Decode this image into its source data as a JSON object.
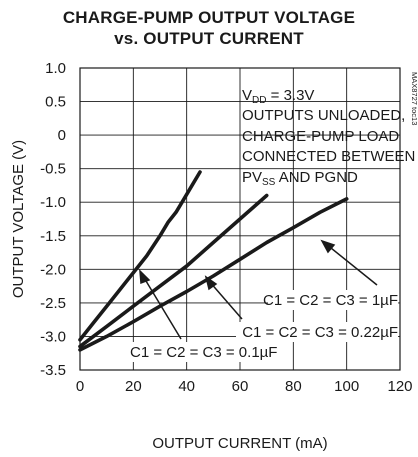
{
  "title_lines": [
    "CHARGE-PUMP OUTPUT VOLTAGE",
    "vs. OUTPUT CURRENT"
  ],
  "chart_data": {
    "type": "line",
    "xlabel": "OUTPUT CURRENT (mA)",
    "ylabel": "OUTPUT VOLTAGE (V)",
    "xlim": [
      0,
      120
    ],
    "ylim": [
      -3.5,
      1.0
    ],
    "xticks": [
      "0",
      "20",
      "40",
      "60",
      "80",
      "100",
      "120"
    ],
    "yticks": [
      "1.0",
      "0.5",
      "0",
      "-0.5",
      "-1.0",
      "-1.5",
      "-2.0",
      "-2.5",
      "-3.0",
      "-3.5"
    ],
    "grid": true,
    "series": [
      {
        "name": "C1 = C2 = C3 = 0.1µF",
        "x": [
          0,
          5,
          10,
          15,
          20,
          25,
          30,
          33,
          36,
          39,
          42,
          45
        ],
        "y": [
          -3.05,
          -2.8,
          -2.55,
          -2.3,
          -2.05,
          -1.8,
          -1.5,
          -1.3,
          -1.15,
          -0.95,
          -0.75,
          -0.55
        ]
      },
      {
        "name": "C1 = C2 = C3 = 0.22µF",
        "x": [
          0,
          10,
          20,
          30,
          40,
          50,
          60,
          70
        ],
        "y": [
          -3.15,
          -2.85,
          -2.55,
          -2.25,
          -1.95,
          -1.6,
          -1.25,
          -0.9
        ]
      },
      {
        "name": "C1 = C2 = C3 = 1µF",
        "x": [
          0,
          10,
          20,
          30,
          40,
          50,
          60,
          70,
          80,
          90,
          100
        ],
        "y": [
          -3.2,
          -3.0,
          -2.78,
          -2.55,
          -2.33,
          -2.1,
          -1.85,
          -1.6,
          -1.38,
          -1.15,
          -0.95
        ]
      }
    ],
    "annotation": {
      "vdd_prefix": "V",
      "vdd_sub": "DD",
      "vdd_value": " = 3.3V",
      "line2": "OUTPUTS UNLOADED,",
      "line3": "CHARGE-PUMP LOAD",
      "line4": "CONNECTED BETWEEN",
      "pv_prefix": "PV",
      "pv_sub": "SS",
      "pv_suffix": " AND PGND"
    },
    "curve_labels": [
      "C1 = C2 = C3 = 1µF",
      "C1 = C2 = C3 = 0.22µF",
      "C1 = C2 = C3 = 0.1µF"
    ],
    "side_code": "MAX8727 toc13"
  }
}
